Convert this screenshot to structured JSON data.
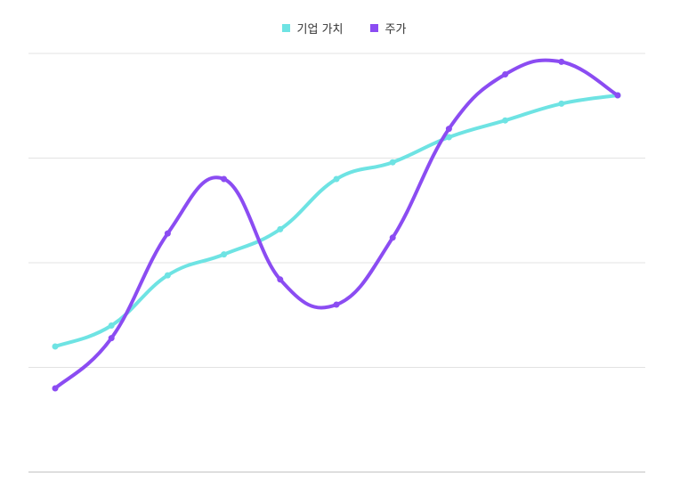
{
  "chart_data": {
    "type": "line",
    "title": "",
    "xlabel": "",
    "ylabel": "",
    "categories": [
      "",
      "",
      "",
      "",
      "",
      "",
      "",
      "",
      "",
      "",
      ""
    ],
    "ylim": [
      0,
      100
    ],
    "grid": true,
    "legend": "top-center",
    "series": [
      {
        "name": "기업 가치",
        "color": "#6EE3E3",
        "values": [
          30,
          35,
          47,
          52,
          58,
          70,
          74,
          80,
          84,
          88,
          90
        ]
      },
      {
        "name": "주가",
        "color": "#8B4CF2",
        "values": [
          20,
          32,
          57,
          70,
          46,
          40,
          56,
          82,
          95,
          98,
          90
        ]
      }
    ]
  }
}
